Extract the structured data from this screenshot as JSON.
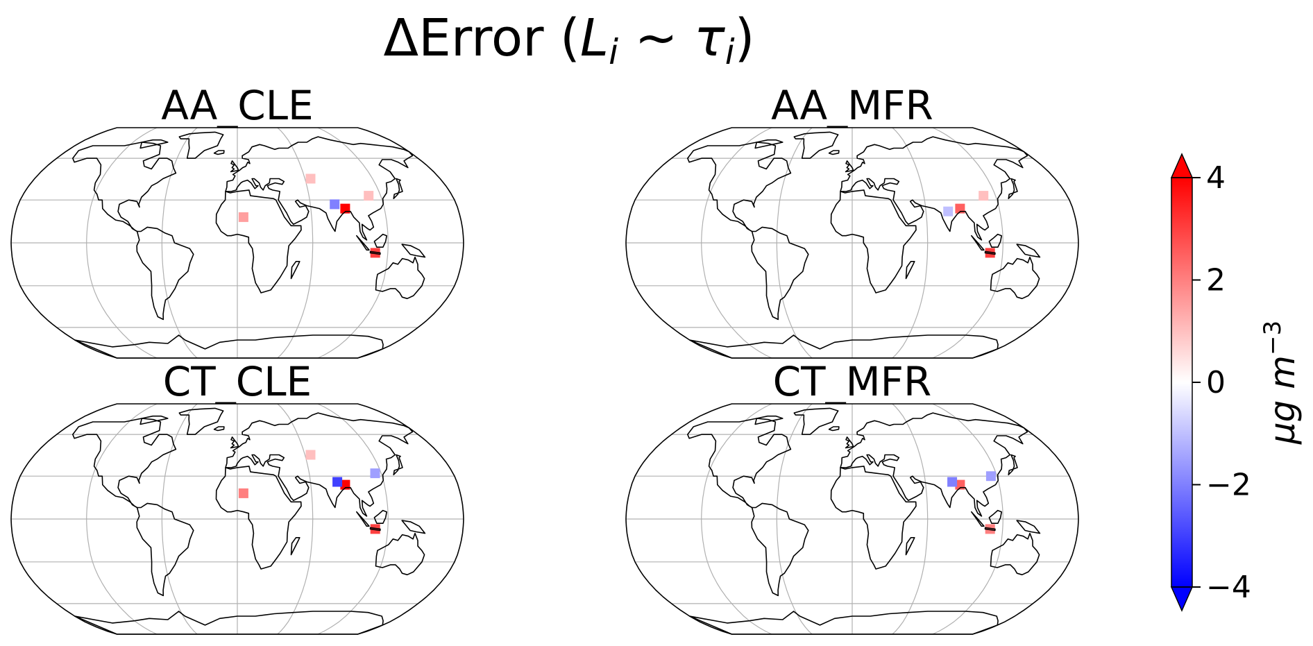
{
  "figure": {
    "title": "ΔError (L",
    "title_parts": {
      "prefix": "ΔError (",
      "var_l": "L",
      "sub_i_1": "i",
      "tilde": " ~ ",
      "var_tau": "τ",
      "sub_i_2": "i",
      "suffix": ")"
    }
  },
  "panels": [
    {
      "title": "AA_CLE",
      "hotspots": [
        {
          "region": "North India / Bangladesh",
          "value": 4,
          "lon": 88,
          "lat": 24
        },
        {
          "region": "North India",
          "value": -2,
          "lon": 80,
          "lat": 27
        },
        {
          "region": "Sahel / North Africa",
          "value": 1.5,
          "lon": 5,
          "lat": 18
        },
        {
          "region": "Java",
          "value": 3,
          "lon": 110,
          "lat": -7
        },
        {
          "region": "China",
          "value": 1,
          "lon": 110,
          "lat": 33
        },
        {
          "region": "Central Asia",
          "value": 1,
          "lon": 65,
          "lat": 45
        }
      ]
    },
    {
      "title": "AA_MFR",
      "hotspots": [
        {
          "region": "North India / Bangladesh",
          "value": 2.5,
          "lon": 88,
          "lat": 24
        },
        {
          "region": "India",
          "value": -1,
          "lon": 78,
          "lat": 22
        },
        {
          "region": "Java",
          "value": 3,
          "lon": 110,
          "lat": -7
        },
        {
          "region": "China",
          "value": 1,
          "lon": 110,
          "lat": 33
        }
      ]
    },
    {
      "title": "CT_CLE",
      "hotspots": [
        {
          "region": "North India / Bangladesh",
          "value": 4,
          "lon": 88,
          "lat": 24
        },
        {
          "region": "North India",
          "value": -3,
          "lon": 82,
          "lat": 26
        },
        {
          "region": "Sahel / North Africa",
          "value": 2,
          "lon": 5,
          "lat": 18
        },
        {
          "region": "Java",
          "value": 3,
          "lon": 110,
          "lat": -7
        },
        {
          "region": "East China",
          "value": -1.5,
          "lon": 115,
          "lat": 32
        },
        {
          "region": "Central Asia",
          "value": 1,
          "lon": 65,
          "lat": 45
        }
      ]
    },
    {
      "title": "CT_MFR",
      "hotspots": [
        {
          "region": "North India / Bangladesh",
          "value": 2.5,
          "lon": 88,
          "lat": 24
        },
        {
          "region": "North India",
          "value": -2,
          "lon": 82,
          "lat": 26
        },
        {
          "region": "East China",
          "value": -1.5,
          "lon": 115,
          "lat": 30
        },
        {
          "region": "Java",
          "value": 2,
          "lon": 110,
          "lat": -7
        }
      ]
    }
  ],
  "colorbar": {
    "min": -4,
    "max": 4,
    "ticks": [
      "−4",
      "−2",
      "0",
      "2",
      "4"
    ],
    "tick_values": [
      -4,
      -2,
      0,
      2,
      4
    ],
    "extend": "both",
    "cmap": "bwr",
    "label": "μg m",
    "label_exponent": "−3",
    "colors": {
      "low": "#0000ff",
      "mid": "#ffffff",
      "high": "#ff0000"
    }
  },
  "map": {
    "projection": "Robinson",
    "graticule": true,
    "gridline_color": "#b0b0b0",
    "coastline_color": "#000000"
  }
}
